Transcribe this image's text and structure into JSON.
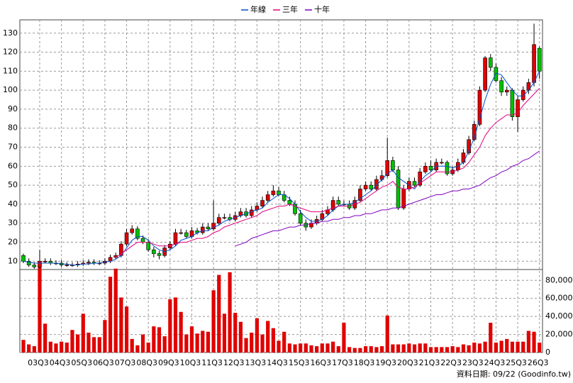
{
  "chart_data": [
    {
      "type": "candlestick",
      "open": [
        13,
        10,
        8,
        7,
        10,
        10,
        9,
        9,
        8,
        8,
        8,
        8.5,
        9,
        9.5,
        9,
        9,
        10,
        12,
        13,
        19,
        25,
        27,
        22,
        20,
        16,
        14,
        13,
        17,
        19,
        25,
        25,
        23,
        26,
        25,
        28,
        27,
        30,
        33,
        33,
        32,
        34,
        36,
        34,
        37,
        39,
        42,
        45,
        47,
        45,
        42,
        40,
        35,
        30,
        28,
        30,
        32,
        35,
        37,
        42,
        40,
        40,
        38,
        42,
        48,
        50,
        48,
        53,
        55,
        63,
        58,
        38,
        48,
        52,
        50,
        57,
        60,
        58,
        62,
        62,
        56,
        58,
        62,
        67,
        74,
        82,
        100,
        117,
        112,
        105,
        99,
        100,
        86,
        95,
        100,
        104,
        122
      ],
      "high": [
        14,
        11.5,
        9.5,
        16,
        11.5,
        11.5,
        10.5,
        10.5,
        9.5,
        9.5,
        10,
        10.5,
        11,
        11,
        10.5,
        11.5,
        13.5,
        14.5,
        20.5,
        27,
        29,
        28.5,
        23.5,
        21.5,
        17.5,
        15.5,
        18.5,
        20.5,
        27,
        27,
        26.5,
        28,
        27.5,
        30,
        30,
        42,
        35,
        35,
        35,
        36,
        38,
        38,
        39,
        41,
        44,
        47,
        50,
        49,
        47,
        44,
        42,
        37,
        32,
        32,
        34,
        37,
        39,
        44,
        44,
        42,
        42,
        44,
        50,
        52,
        52,
        55,
        58,
        75,
        65,
        60,
        50,
        54,
        54,
        59,
        62,
        63,
        64,
        64,
        63,
        60,
        64,
        69,
        76,
        84,
        102,
        118,
        119,
        114,
        107,
        102,
        101,
        97,
        102,
        106,
        135,
        123
      ],
      "low": [
        9,
        7,
        6,
        6,
        9,
        8,
        8,
        7,
        7,
        7,
        7,
        7.5,
        8,
        8,
        8,
        8,
        9,
        11,
        12,
        18,
        24,
        21,
        19,
        15,
        12,
        11,
        12,
        16,
        18,
        24,
        22,
        22,
        24,
        24,
        26,
        26,
        29,
        32,
        31,
        31,
        33,
        33,
        33,
        36,
        38,
        41,
        44,
        44,
        41,
        39,
        34,
        29,
        26,
        27,
        29,
        31,
        34,
        36,
        39,
        39,
        37,
        37,
        41,
        47,
        47,
        47,
        52,
        54,
        57,
        37,
        37,
        47,
        49,
        49,
        56,
        57,
        57,
        61,
        55,
        55,
        57,
        61,
        66,
        73,
        81,
        99,
        110,
        104,
        97,
        97,
        84,
        78,
        94,
        98,
        102,
        106
      ],
      "close": [
        10,
        8,
        7,
        10,
        10,
        9,
        9,
        8,
        8,
        8,
        8.5,
        9,
        9.5,
        9,
        9,
        10,
        12,
        13,
        19,
        25,
        27,
        22,
        20,
        16,
        14,
        13,
        17,
        19,
        25,
        25,
        23,
        26,
        25,
        28,
        27,
        30,
        33,
        33,
        32,
        34,
        36,
        34,
        37,
        39,
        42,
        45,
        47,
        45,
        42,
        40,
        35,
        30,
        28,
        30,
        32,
        35,
        37,
        42,
        40,
        40,
        38,
        42,
        48,
        50,
        48,
        53,
        55,
        63,
        58,
        38,
        48,
        52,
        50,
        57,
        60,
        58,
        62,
        62,
        56,
        58,
        62,
        67,
        74,
        82,
        100,
        117,
        112,
        105,
        99,
        100,
        86,
        95,
        100,
        104,
        124,
        110
      ],
      "up_color": "#e00000",
      "down_color": "#00c000",
      "series": [
        {
          "name": "年線",
          "color": "#0050c8",
          "values": [
            10,
            9.5,
            9,
            9,
            9,
            9,
            9,
            8.5,
            8.5,
            8,
            8,
            8.5,
            8.5,
            9,
            9,
            9.5,
            10,
            11,
            13,
            17,
            21,
            23,
            23,
            21,
            18,
            16,
            15,
            16,
            18,
            21,
            22,
            23,
            25,
            26,
            26,
            28,
            29,
            31,
            32,
            33,
            34,
            35,
            36,
            37,
            38,
            41,
            43,
            45,
            45,
            43,
            40,
            36,
            33,
            31,
            31,
            32,
            34,
            37,
            39,
            40,
            40,
            41,
            43,
            45,
            47,
            50,
            53,
            56,
            58,
            54,
            52,
            50,
            48,
            52,
            55,
            57,
            60,
            60,
            60,
            59,
            60,
            62,
            68,
            75,
            85,
            95,
            103,
            109,
            108,
            104,
            100,
            97,
            97,
            100,
            104,
            110
          ]
        },
        {
          "name": "三年",
          "color": "#e0007f",
          "values": [
            null,
            null,
            null,
            null,
            null,
            null,
            null,
            null,
            null,
            null,
            null,
            null,
            null,
            null,
            null,
            null,
            null,
            12,
            14,
            16,
            18,
            20,
            20,
            20,
            19,
            18,
            18,
            18,
            19,
            20,
            20,
            21,
            22,
            22,
            23,
            25,
            26,
            28,
            29,
            30,
            31,
            32,
            33,
            34,
            36,
            37,
            38,
            39,
            39,
            40,
            39,
            38,
            37,
            36,
            36,
            36,
            37,
            38,
            39,
            39,
            39,
            40,
            41,
            43,
            45,
            47,
            49,
            50,
            52,
            49,
            48,
            48,
            49,
            51,
            53,
            55,
            57,
            57,
            57,
            57,
            58,
            59,
            62,
            66,
            70,
            76,
            80,
            83,
            85,
            87,
            87,
            88,
            92,
            95,
            98,
            101
          ]
        },
        {
          "name": "十年",
          "color": "#8000c0",
          "values": [
            null,
            null,
            null,
            null,
            null,
            null,
            null,
            null,
            null,
            null,
            null,
            null,
            null,
            null,
            null,
            null,
            null,
            null,
            null,
            null,
            null,
            null,
            null,
            null,
            null,
            null,
            null,
            null,
            null,
            null,
            null,
            null,
            null,
            null,
            null,
            null,
            null,
            null,
            null,
            18,
            19,
            20,
            22,
            23,
            24,
            25,
            26,
            26,
            27,
            28,
            28,
            29,
            29,
            30,
            30,
            31,
            31,
            32,
            32,
            33,
            33,
            34,
            34,
            35,
            35,
            36,
            37,
            37,
            38,
            38,
            39,
            40,
            41,
            42,
            43,
            44,
            45,
            45,
            46,
            47,
            47,
            48,
            48,
            49,
            50,
            52,
            54,
            55,
            57,
            58,
            60,
            61,
            63,
            64,
            66,
            68
          ]
        }
      ],
      "ylim": [
        6,
        137
      ],
      "yticks": [
        10,
        20,
        30,
        40,
        50,
        60,
        70,
        80,
        90,
        100,
        110,
        120,
        130
      ],
      "grid": true
    },
    {
      "type": "bar",
      "categories": [
        null,
        null,
        null,
        "03Q3",
        null,
        null,
        null,
        "04Q3",
        null,
        null,
        null,
        "05Q3",
        null,
        null,
        null,
        "06Q3",
        null,
        null,
        null,
        "07Q3",
        null,
        null,
        null,
        "08Q3",
        null,
        null,
        null,
        "09Q3",
        null,
        null,
        null,
        "10Q3",
        null,
        null,
        null,
        "11Q3",
        null,
        null,
        null,
        "12Q3",
        null,
        null,
        null,
        "13Q3",
        null,
        null,
        null,
        "14Q3",
        null,
        null,
        null,
        "15Q3",
        null,
        null,
        null,
        "16Q3",
        null,
        null,
        null,
        "17Q3",
        null,
        null,
        null,
        "18Q3",
        null,
        null,
        null,
        "19Q3",
        null,
        null,
        null,
        "20Q3",
        null,
        null,
        null,
        "21Q3",
        null,
        null,
        null,
        "22Q3",
        null,
        null,
        null,
        "23Q3",
        null,
        null,
        null,
        "24Q3",
        null,
        null,
        null,
        "25Q3",
        null,
        null,
        null,
        "26Q3"
      ],
      "values": [
        14000,
        9000,
        7000,
        95000,
        32000,
        12000,
        10000,
        12000,
        11000,
        25000,
        20000,
        43000,
        22000,
        17000,
        17000,
        36000,
        84000,
        93000,
        61000,
        51000,
        15000,
        8000,
        20000,
        11000,
        29000,
        28000,
        18000,
        59000,
        61000,
        45000,
        20000,
        29000,
        21000,
        24000,
        23000,
        69000,
        86000,
        43000,
        89000,
        44000,
        34000,
        16000,
        22000,
        38000,
        20000,
        35000,
        27000,
        13000,
        23000,
        10000,
        9000,
        10000,
        10000,
        8000,
        7000,
        10000,
        10000,
        12000,
        7000,
        33000,
        6000,
        5000,
        5000,
        7000,
        7000,
        6000,
        7000,
        41000,
        9000,
        9000,
        9000,
        10000,
        9000,
        10000,
        10000,
        6000,
        6000,
        6000,
        6000,
        7000,
        6000,
        9000,
        8000,
        11000,
        10000,
        12000,
        33000,
        11000,
        13000,
        15000,
        12000,
        12000,
        12000,
        24000,
        23000,
        11000
      ],
      "color": "#e00000",
      "ylim": [
        0,
        92000
      ],
      "yticks": [
        0,
        {
          "value": 20000,
          "label": "20,000"
        },
        {
          "value": 40000,
          "label": "40,000"
        },
        {
          "value": 60000,
          "label": "60,000"
        },
        {
          "value": 80000,
          "label": "80,000"
        }
      ],
      "grid": true
    }
  ],
  "footer": "資料日期: 09/22 (Goodinfo.tw)"
}
